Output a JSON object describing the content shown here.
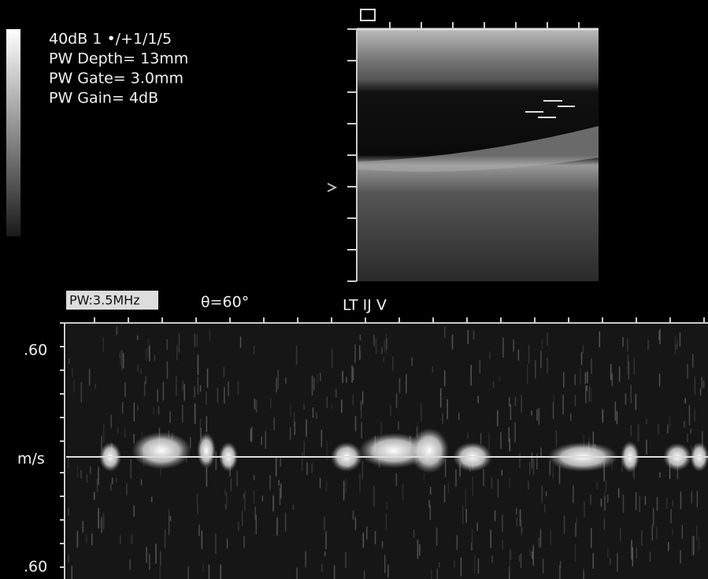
{
  "settings": {
    "lines": [
      "40dB  1 •/+1/1/5",
      "PW Depth=  13mm",
      "PW Gate=  3.0mm",
      "PW Gain=    4dB"
    ]
  },
  "doppler": {
    "frequency": "PW:3.5MHz",
    "angle": "θ=60°",
    "label": "LT IJ V",
    "scale_top": ".60",
    "unit": "m/s",
    "scale_bottom": ".60"
  }
}
